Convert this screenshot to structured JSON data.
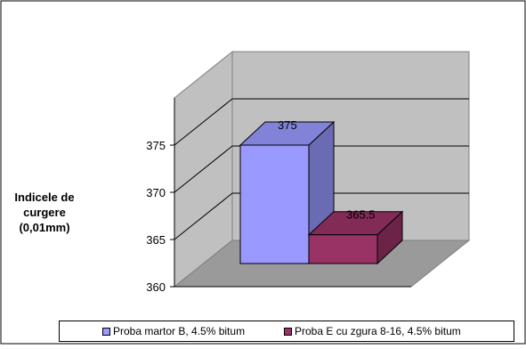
{
  "chart_data": {
    "type": "bar",
    "ylabel": "Indicele de curgere (0,01mm)",
    "ylim": [
      360,
      380
    ],
    "yticks": [
      360,
      365,
      370,
      375
    ],
    "grid": true,
    "legend_position": "bottom",
    "series": [
      {
        "name": "Proba martor B, 4.5% bitum",
        "value": 375,
        "label": "375",
        "color": "#9999ff"
      },
      {
        "name": "Proba E cu zgura 8-16, 4.5% bitum",
        "value": 365.5,
        "label": "365.5",
        "color": "#993366"
      }
    ]
  }
}
